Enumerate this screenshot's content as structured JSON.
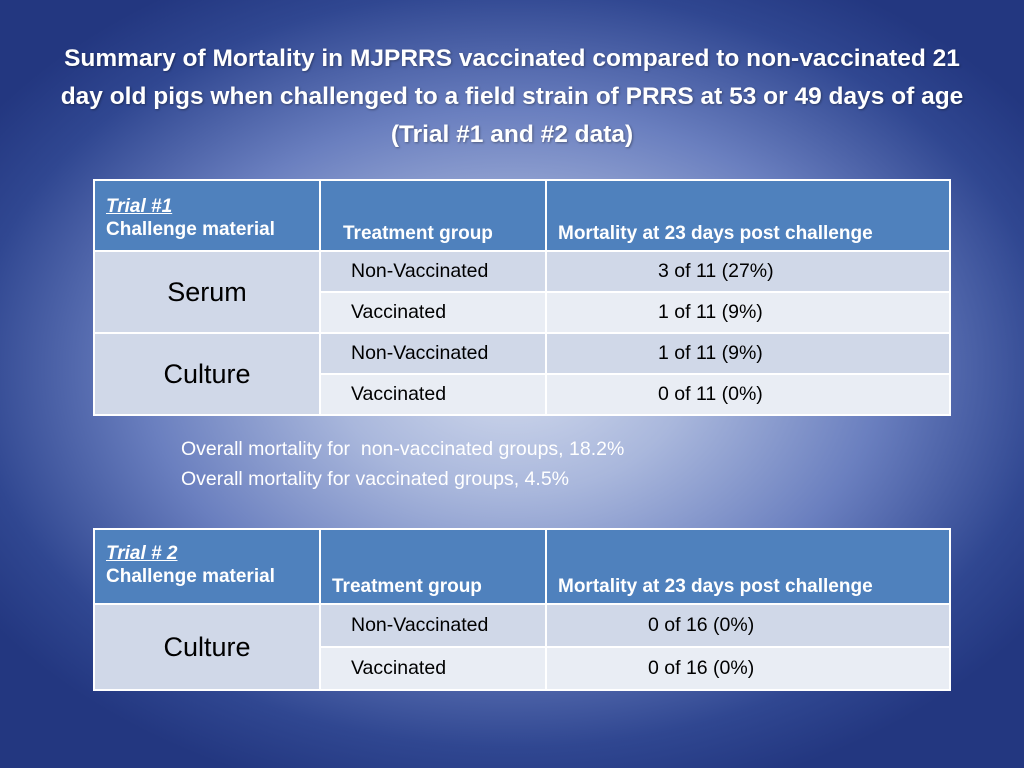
{
  "title": "Summary of Mortality in MJPRRS vaccinated compared to non-vaccinated 21 day old pigs when challenged to a field strain of PRRS at 53 or 49 days of age (Trial #1 and #2 data)",
  "trial1": {
    "label": "Trial #1",
    "headers": {
      "challenge": "Challenge material",
      "treatment": "Treatment group",
      "mortality": "Mortality at 23 days post challenge"
    },
    "groups": [
      {
        "material": "Serum",
        "rows": [
          {
            "treatment": "Non-Vaccinated",
            "mortality": "3 of 11 (27%)"
          },
          {
            "treatment": "Vaccinated",
            "mortality": "1 of 11 (9%)"
          }
        ]
      },
      {
        "material": "Culture",
        "rows": [
          {
            "treatment": "Non-Vaccinated",
            "mortality": "1 of 11 (9%)"
          },
          {
            "treatment": "Vaccinated",
            "mortality": "0 of 11 (0%)"
          }
        ]
      }
    ]
  },
  "summary": {
    "line1": "Overall mortality for  non-vaccinated groups, 18.2%",
    "line2": "Overall mortality for vaccinated groups, 4.5%"
  },
  "trial2": {
    "label": "Trial # 2",
    "headers": {
      "challenge": "Challenge material",
      "treatment": "Treatment group",
      "mortality": "Mortality at 23 days post challenge"
    },
    "groups": [
      {
        "material": "Culture",
        "rows": [
          {
            "treatment": "Non-Vaccinated",
            "mortality": "0 of 16 (0%)"
          },
          {
            "treatment": "Vaccinated",
            "mortality": "0 of 16 (0%)"
          }
        ]
      }
    ]
  }
}
